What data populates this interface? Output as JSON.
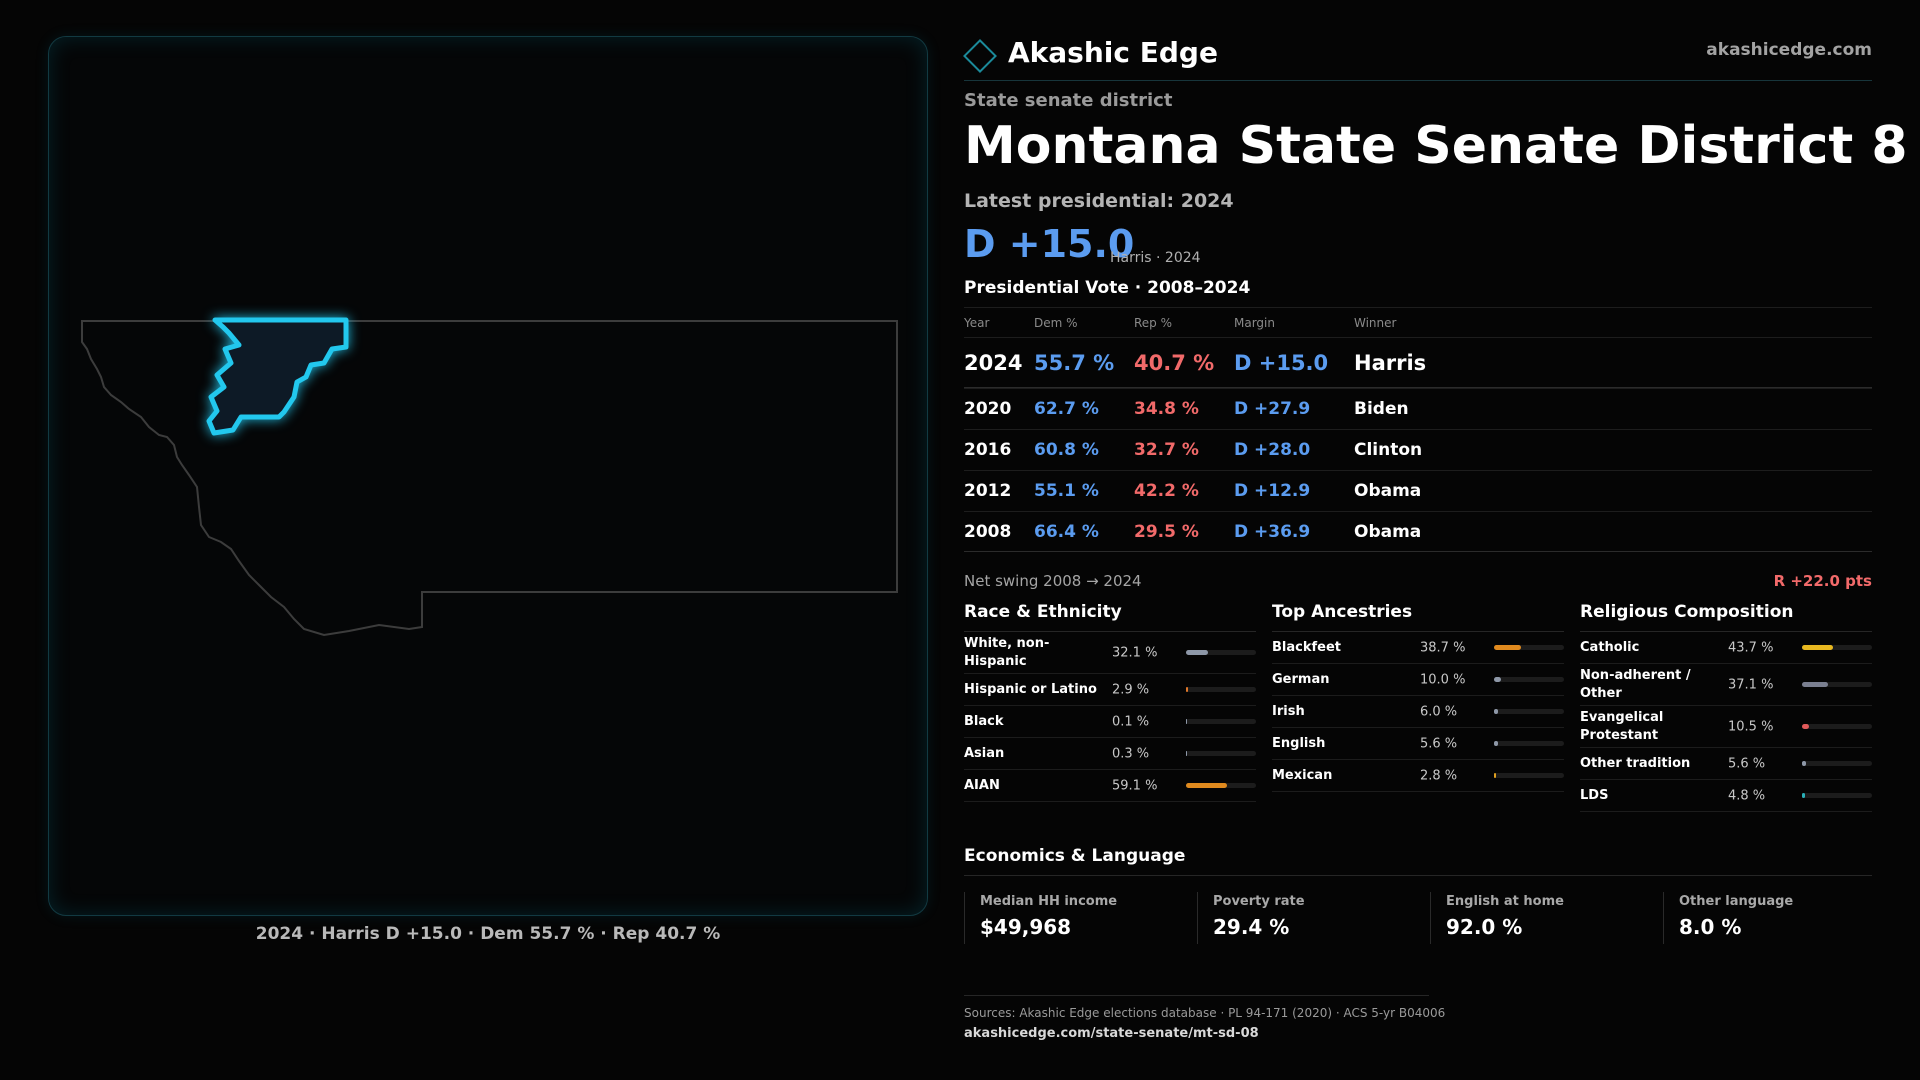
{
  "brand": {
    "name": "Akashic Edge",
    "site": "akashicedge.com",
    "accent": "#1b8a9a"
  },
  "eyebrow": "State senate district",
  "title": "Montana State Senate District 8",
  "latest_label": "Latest presidential: 2024",
  "headline": {
    "margin": "D +15.0",
    "sub": "Harris · 2024"
  },
  "map_caption": "2024 · Harris D +15.0 · Dem 55.7 % · Rep 40.7 %",
  "vote_table": {
    "title": "Presidential Vote · 2008–2024",
    "headers": {
      "year": "Year",
      "dem": "Dem %",
      "rep": "Rep %",
      "margin": "Margin",
      "winner": "Winner"
    },
    "rows": [
      {
        "year": "2024",
        "dem": "55.7 %",
        "rep": "40.7 %",
        "margin": "D +15.0",
        "winner": "Harris"
      },
      {
        "year": "2020",
        "dem": "62.7 %",
        "rep": "34.8 %",
        "margin": "D +27.9",
        "winner": "Biden"
      },
      {
        "year": "2016",
        "dem": "60.8 %",
        "rep": "32.7 %",
        "margin": "D +28.0",
        "winner": "Clinton"
      },
      {
        "year": "2012",
        "dem": "55.1 %",
        "rep": "42.2 %",
        "margin": "D +12.9",
        "winner": "Obama"
      },
      {
        "year": "2008",
        "dem": "66.4 %",
        "rep": "29.5 %",
        "margin": "D +36.9",
        "winner": "Obama"
      }
    ]
  },
  "swing": {
    "label": "Net swing 2008 → 2024",
    "value": "R +22.0 pts"
  },
  "race": {
    "title": "Race & Ethnicity",
    "items": [
      {
        "label": "White, non-Hispanic",
        "pct": "32.1 %",
        "value": 32.1,
        "color": "#8e98a8"
      },
      {
        "label": "Hispanic or Latino",
        "pct": "2.9 %",
        "value": 2.9,
        "color": "#e0782a"
      },
      {
        "label": "Black",
        "pct": "0.1 %",
        "value": 0.1,
        "color": "#8e98a8"
      },
      {
        "label": "Asian",
        "pct": "0.3 %",
        "value": 0.3,
        "color": "#8e98a8"
      },
      {
        "label": "AIAN",
        "pct": "59.1 %",
        "value": 59.1,
        "color": "#e08a1e"
      }
    ]
  },
  "ancestry": {
    "title": "Top Ancestries",
    "items": [
      {
        "label": "Blackfeet",
        "pct": "38.7 %",
        "value": 38.7,
        "color": "#e08a1e"
      },
      {
        "label": "German",
        "pct": "10.0 %",
        "value": 10.0,
        "color": "#8e98a8"
      },
      {
        "label": "Irish",
        "pct": "6.0 %",
        "value": 6.0,
        "color": "#8e98a8"
      },
      {
        "label": "English",
        "pct": "5.6 %",
        "value": 5.6,
        "color": "#8e98a8"
      },
      {
        "label": "Mexican",
        "pct": "2.8 %",
        "value": 2.8,
        "color": "#e0a020"
      }
    ]
  },
  "religion": {
    "title": "Religious Composition",
    "items": [
      {
        "label": "Catholic",
        "pct": "43.7 %",
        "value": 43.7,
        "color": "#e8b820"
      },
      {
        "label": "Non-adherent / Other",
        "pct": "37.1 %",
        "value": 37.1,
        "color": "#7a7f90"
      },
      {
        "label": "Evangelical Protestant",
        "pct": "10.5 %",
        "value": 10.5,
        "color": "#e05a5a"
      },
      {
        "label": "Other tradition",
        "pct": "5.6 %",
        "value": 5.6,
        "color": "#8e98a8"
      },
      {
        "label": "LDS",
        "pct": "4.8 %",
        "value": 4.8,
        "color": "#2ab0b8"
      }
    ]
  },
  "economics": {
    "title": "Economics & Language",
    "items": [
      {
        "label": "Median HH income",
        "value": "$49,968"
      },
      {
        "label": "Poverty rate",
        "value": "29.4 %"
      },
      {
        "label": "English at home",
        "value": "92.0 %"
      },
      {
        "label": "Other language",
        "value": "8.0 %"
      }
    ]
  },
  "sources": "Sources: Akashic Edge elections database · PL 94-171 (2020) · ACS 5-yr B04006",
  "source_url": "akashicedge.com/state-senate/mt-sd-08",
  "colors": {
    "dem": "#5b9cf0",
    "rep": "#f26a6a",
    "district": "#22c8ee"
  }
}
